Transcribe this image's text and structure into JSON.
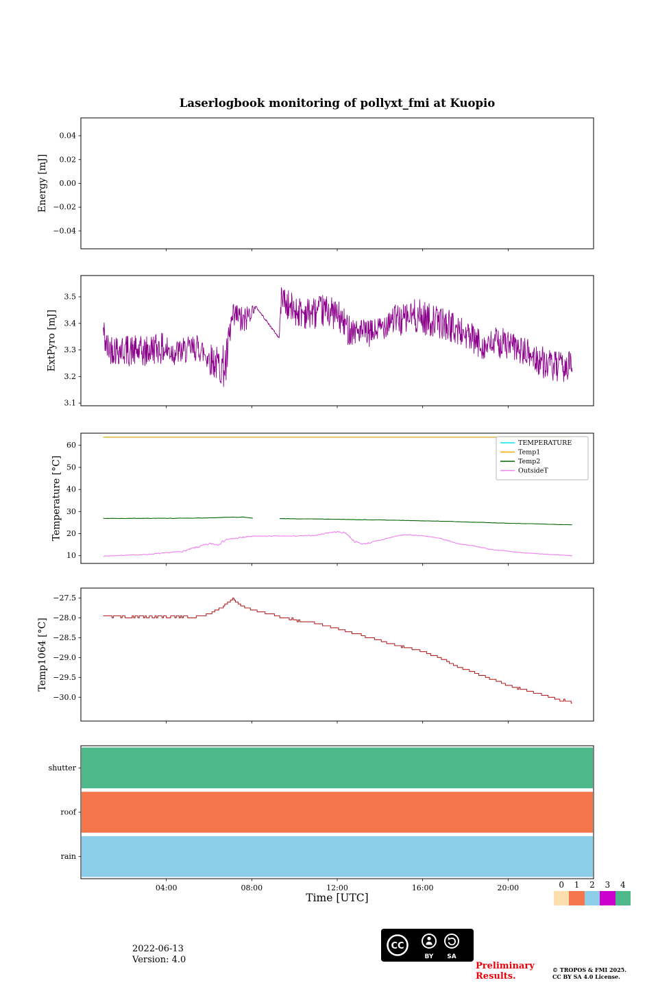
{
  "title": "Laserlogbook monitoring of pollyxt_fmi at Kuopio",
  "xlabel": "Time [UTC]",
  "time_axis": {
    "min": 0,
    "max": 24,
    "ticks": [
      4,
      8,
      12,
      16,
      20
    ],
    "tick_labels": [
      "04:00",
      "08:00",
      "12:00",
      "16:00",
      "20:00"
    ]
  },
  "chart_data": [
    {
      "type": "line",
      "title": "",
      "ylabel": "Energy [mJ]",
      "ylim": [
        -0.055,
        0.055
      ],
      "yticks": [
        -0.04,
        -0.02,
        0.0,
        0.02,
        0.04
      ],
      "ytick_labels": [
        "−0.04",
        "−0.02",
        "0.00",
        "0.02",
        "0.04"
      ],
      "series": []
    },
    {
      "type": "line",
      "ylabel": "ExtPyro [mJ]",
      "ylim": [
        3.09,
        3.58
      ],
      "yticks": [
        3.1,
        3.2,
        3.3,
        3.4,
        3.5
      ],
      "ytick_labels": [
        "3.1",
        "3.2",
        "3.3",
        "3.4",
        "3.5"
      ],
      "series": [
        {
          "name": "ExtPyro",
          "color": "#8B008B",
          "width": 0.9,
          "seed": 42,
          "sample_step": 0.02,
          "anchors": [
            [
              1.05,
              3.37,
              0.07
            ],
            [
              1.2,
              3.31,
              0.06
            ],
            [
              2,
              3.3,
              0.06
            ],
            [
              3,
              3.29,
              0.06
            ],
            [
              3.5,
              3.31,
              0.06
            ],
            [
              4,
              3.3,
              0.06
            ],
            [
              4.5,
              3.29,
              0.05
            ],
            [
              5,
              3.3,
              0.05
            ],
            [
              5.5,
              3.31,
              0.05
            ],
            [
              6,
              3.27,
              0.06
            ],
            [
              6.5,
              3.24,
              0.07
            ],
            [
              6.8,
              3.24,
              0.09
            ],
            [
              7.05,
              3.4,
              0.07
            ],
            [
              7.3,
              3.43,
              0.05
            ],
            [
              7.6,
              3.4,
              0.06
            ],
            [
              7.9,
              3.44,
              0.04
            ],
            [
              8.2,
              3.462,
              0.004
            ],
            [
              9.28,
              3.345,
              0.004
            ],
            [
              9.4,
              3.52,
              0.05
            ],
            [
              9.6,
              3.47,
              0.06
            ],
            [
              10,
              3.45,
              0.06
            ],
            [
              10.5,
              3.44,
              0.06
            ],
            [
              11,
              3.44,
              0.06
            ],
            [
              11.5,
              3.45,
              0.06
            ],
            [
              12,
              3.43,
              0.06
            ],
            [
              12.5,
              3.38,
              0.06
            ],
            [
              13,
              3.37,
              0.05
            ],
            [
              13.5,
              3.36,
              0.05
            ],
            [
              14,
              3.38,
              0.05
            ],
            [
              14.5,
              3.42,
              0.06
            ],
            [
              15,
              3.41,
              0.06
            ],
            [
              15.5,
              3.43,
              0.06
            ],
            [
              16,
              3.42,
              0.07
            ],
            [
              16.5,
              3.41,
              0.06
            ],
            [
              17,
              3.4,
              0.06
            ],
            [
              17.5,
              3.38,
              0.06
            ],
            [
              18,
              3.36,
              0.06
            ],
            [
              18.5,
              3.33,
              0.06
            ],
            [
              19,
              3.31,
              0.05
            ],
            [
              19.5,
              3.33,
              0.06
            ],
            [
              20,
              3.32,
              0.06
            ],
            [
              20.5,
              3.3,
              0.05
            ],
            [
              21,
              3.28,
              0.06
            ],
            [
              21.5,
              3.26,
              0.06
            ],
            [
              22,
              3.24,
              0.06
            ],
            [
              22.5,
              3.23,
              0.06
            ],
            [
              23,
              3.25,
              0.05
            ]
          ]
        }
      ]
    },
    {
      "type": "line",
      "ylabel": "Temperature [°C]",
      "ylim": [
        6.5,
        65.5
      ],
      "yticks": [
        10,
        20,
        30,
        40,
        50,
        60
      ],
      "ytick_labels": [
        "10",
        "20",
        "30",
        "40",
        "50",
        "60"
      ],
      "legend": true,
      "series": [
        {
          "name": "TEMPERATURE",
          "color": "#00e5ee",
          "width": 1.2,
          "seed": 1,
          "sample_step": 2,
          "anchors": [
            [
              1.05,
              63.7,
              0
            ],
            [
              23,
              63.7,
              0
            ]
          ]
        },
        {
          "name": "Temp1",
          "color": "#ffa500",
          "width": 1.2,
          "seed": 2,
          "sample_step": 2,
          "anchors": [
            [
              1.05,
              63.7,
              0
            ],
            [
              23,
              63.7,
              0
            ]
          ]
        },
        {
          "name": "Temp2",
          "color": "#006400",
          "width": 1.1,
          "seed": 3,
          "sample_step": 0.1,
          "gaps": [
            [
              8.05,
              9.3
            ]
          ],
          "anchors": [
            [
              1.05,
              26.9,
              0.08
            ],
            [
              3,
              26.9,
              0.08
            ],
            [
              5,
              27.0,
              0.08
            ],
            [
              6,
              27.1,
              0.08
            ],
            [
              7,
              27.4,
              0.08
            ],
            [
              7.6,
              27.5,
              0.08
            ],
            [
              8.05,
              27.0,
              0.05
            ],
            [
              9.3,
              26.8,
              0.05
            ],
            [
              10,
              26.7,
              0.06
            ],
            [
              11,
              26.6,
              0.06
            ],
            [
              12,
              26.5,
              0.06
            ],
            [
              13,
              26.3,
              0.06
            ],
            [
              14,
              26.2,
              0.06
            ],
            [
              15,
              26.0,
              0.06
            ],
            [
              16,
              25.8,
              0.06
            ],
            [
              17,
              25.6,
              0.06
            ],
            [
              18,
              25.3,
              0.06
            ],
            [
              19,
              25.0,
              0.06
            ],
            [
              20,
              24.7,
              0.06
            ],
            [
              21,
              24.5,
              0.06
            ],
            [
              22,
              24.2,
              0.06
            ],
            [
              23,
              24.0,
              0.06
            ]
          ]
        },
        {
          "name": "OutsideT",
          "color": "#ee82ee",
          "width": 1.1,
          "seed": 7,
          "sample_step": 0.04,
          "anchors": [
            [
              1.05,
              9.8,
              0.15
            ],
            [
              2,
              10.2,
              0.15
            ],
            [
              3,
              10.5,
              0.2
            ],
            [
              4,
              11.3,
              0.2
            ],
            [
              4.8,
              12.0,
              0.3
            ],
            [
              5.3,
              13.5,
              0.4
            ],
            [
              5.7,
              14.5,
              0.5
            ],
            [
              6.1,
              15.5,
              0.5
            ],
            [
              6.4,
              15.0,
              0.5
            ],
            [
              6.8,
              17.3,
              0.4
            ],
            [
              7.2,
              17.8,
              0.3
            ],
            [
              7.6,
              18.3,
              0.4
            ],
            [
              8.0,
              18.8,
              0.2
            ],
            [
              9,
              18.9,
              0.15
            ],
            [
              10,
              18.9,
              0.15
            ],
            [
              11,
              19.2,
              0.2
            ],
            [
              11.6,
              20.5,
              0.3
            ],
            [
              12.0,
              20.8,
              0.3
            ],
            [
              12.4,
              20.3,
              0.4
            ],
            [
              12.8,
              16.5,
              0.4
            ],
            [
              13.2,
              15.3,
              0.3
            ],
            [
              13.6,
              16.0,
              0.3
            ],
            [
              14.2,
              17.5,
              0.3
            ],
            [
              14.8,
              19.0,
              0.2
            ],
            [
              15.2,
              19.5,
              0.2
            ],
            [
              15.8,
              19.2,
              0.2
            ],
            [
              16.2,
              18.8,
              0.2
            ],
            [
              16.8,
              17.8,
              0.2
            ],
            [
              17.2,
              16.8,
              0.2
            ],
            [
              17.6,
              15.6,
              0.2
            ],
            [
              18.0,
              14.9,
              0.2
            ],
            [
              18.5,
              14.3,
              0.2
            ],
            [
              19.0,
              13.2,
              0.2
            ],
            [
              19.5,
              12.5,
              0.15
            ],
            [
              20.0,
              12.0,
              0.15
            ],
            [
              20.5,
              11.5,
              0.1
            ],
            [
              21.0,
              11.1,
              0.1
            ],
            [
              21.5,
              10.8,
              0.1
            ],
            [
              22.0,
              10.5,
              0.1
            ],
            [
              22.5,
              10.3,
              0.1
            ],
            [
              23.0,
              10.0,
              0.1
            ]
          ]
        }
      ]
    },
    {
      "type": "step",
      "ylabel": "Temp1064 [°C]",
      "ylim": [
        -30.6,
        -27.25
      ],
      "yticks": [
        -30.0,
        -29.5,
        -29.0,
        -28.5,
        -28.0,
        -27.5
      ],
      "ytick_labels": [
        "−30.0",
        "−29.5",
        "−29.0",
        "−28.5",
        "−28.0",
        "−27.5"
      ],
      "series": [
        {
          "name": "Temp1064",
          "color": "#b22222",
          "width": 1.1,
          "seed": 11,
          "sample_step": 0.07,
          "quantize": 0.05,
          "step_mode": true,
          "anchors": [
            [
              1.05,
              -27.97,
              0.035
            ],
            [
              2,
              -27.97,
              0.035
            ],
            [
              3,
              -27.97,
              0.035
            ],
            [
              4,
              -27.97,
              0.035
            ],
            [
              4.8,
              -27.97,
              0.03
            ],
            [
              5.2,
              -28.0,
              0.02
            ],
            [
              5.6,
              -27.95,
              0.02
            ],
            [
              6.0,
              -27.9,
              0.02
            ],
            [
              6.4,
              -27.8,
              0.02
            ],
            [
              6.8,
              -27.65,
              0.02
            ],
            [
              7.0,
              -27.55,
              0.02
            ],
            [
              7.1,
              -27.5,
              0.01
            ],
            [
              7.3,
              -27.62,
              0.02
            ],
            [
              7.6,
              -27.72,
              0.02
            ],
            [
              8.0,
              -27.8,
              0.01
            ],
            [
              8.5,
              -27.87,
              0.01
            ],
            [
              9.0,
              -27.92,
              0.015
            ],
            [
              9.5,
              -28.0,
              0.02
            ],
            [
              10,
              -28.05,
              0.02
            ],
            [
              10.5,
              -28.1,
              0.015
            ],
            [
              11,
              -28.15,
              0.015
            ],
            [
              11.5,
              -28.2,
              0.01
            ],
            [
              12,
              -28.27,
              0.01
            ],
            [
              12.5,
              -28.35,
              0.015
            ],
            [
              13,
              -28.42,
              0.015
            ],
            [
              13.5,
              -28.5,
              0.015
            ],
            [
              14,
              -28.58,
              0.01
            ],
            [
              14.5,
              -28.65,
              0.015
            ],
            [
              15,
              -28.72,
              0.01
            ],
            [
              15.5,
              -28.78,
              0.01
            ],
            [
              16,
              -28.85,
              0.01
            ],
            [
              16.5,
              -28.95,
              0.01
            ],
            [
              17,
              -29.05,
              0.01
            ],
            [
              17.5,
              -29.2,
              0.01
            ],
            [
              18,
              -29.3,
              0.01
            ],
            [
              18.5,
              -29.4,
              0.01
            ],
            [
              19,
              -29.5,
              0.01
            ],
            [
              19.5,
              -29.6,
              0.01
            ],
            [
              20,
              -29.7,
              0.01
            ],
            [
              20.5,
              -29.78,
              0.01
            ],
            [
              21,
              -29.85,
              0.01
            ],
            [
              21.5,
              -29.92,
              0.01
            ],
            [
              22,
              -30.0,
              0.01
            ],
            [
              22.3,
              -30.05,
              0.02
            ],
            [
              22.6,
              -30.08,
              0.02
            ],
            [
              22.9,
              -30.12,
              0.03
            ],
            [
              23.0,
              -30.15,
              0.02
            ]
          ]
        }
      ]
    },
    {
      "type": "status",
      "ylabel": "",
      "rows": [
        {
          "label": "shutter",
          "value": 4,
          "color": "#4db98a"
        },
        {
          "label": "roof",
          "value": 1,
          "color": "#f4764a"
        },
        {
          "label": "rain",
          "value": 2,
          "color": "#8ccdea"
        }
      ],
      "span": [
        0,
        24
      ]
    }
  ],
  "colorbar": {
    "labels": [
      "0",
      "1",
      "2",
      "3",
      "4"
    ],
    "colors": [
      "#ffdead",
      "#f4764a",
      "#8ccdea",
      "#cc00cc",
      "#4db98a"
    ]
  },
  "footer": {
    "date": "2022-06-13",
    "version": "Version: 4.0",
    "preliminary_1": "Preliminary",
    "preliminary_2": "Results.",
    "copyright_line1": "© TROPOS & FMI 2025.",
    "copyright_line2": "CC BY SA 4.0 License.",
    "cc": "CC",
    "by": "BY",
    "sa": "SA"
  }
}
